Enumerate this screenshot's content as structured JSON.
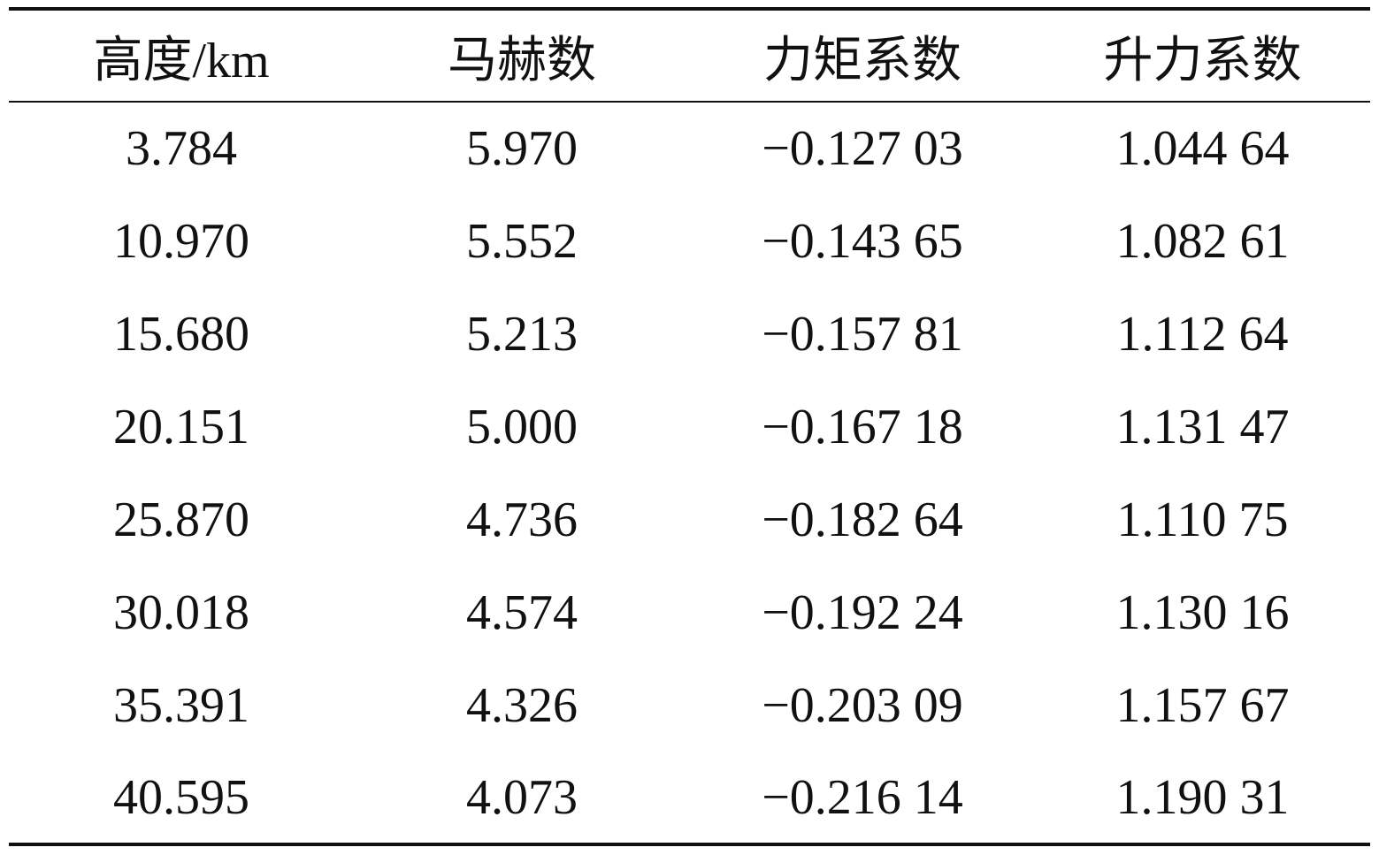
{
  "table": {
    "header": [
      "高度/km",
      "马赫数",
      "力矩系数",
      "升力系数"
    ],
    "rows": [
      [
        "3.784",
        "5.970",
        "−0.127 03",
        "1.044 64"
      ],
      [
        "10.970",
        "5.552",
        "−0.143 65",
        "1.082 61"
      ],
      [
        "15.680",
        "5.213",
        "−0.157 81",
        "1.112 64"
      ],
      [
        "20.151",
        "5.000",
        "−0.167 18",
        "1.131 47"
      ],
      [
        "25.870",
        "4.736",
        "−0.182 64",
        "1.110 75"
      ],
      [
        "30.018",
        "4.574",
        "−0.192 24",
        "1.130 16"
      ],
      [
        "35.391",
        "4.326",
        "−0.203 09",
        "1.157 67"
      ],
      [
        "40.595",
        "4.073",
        "−0.216 14",
        "1.190 31"
      ]
    ]
  }
}
